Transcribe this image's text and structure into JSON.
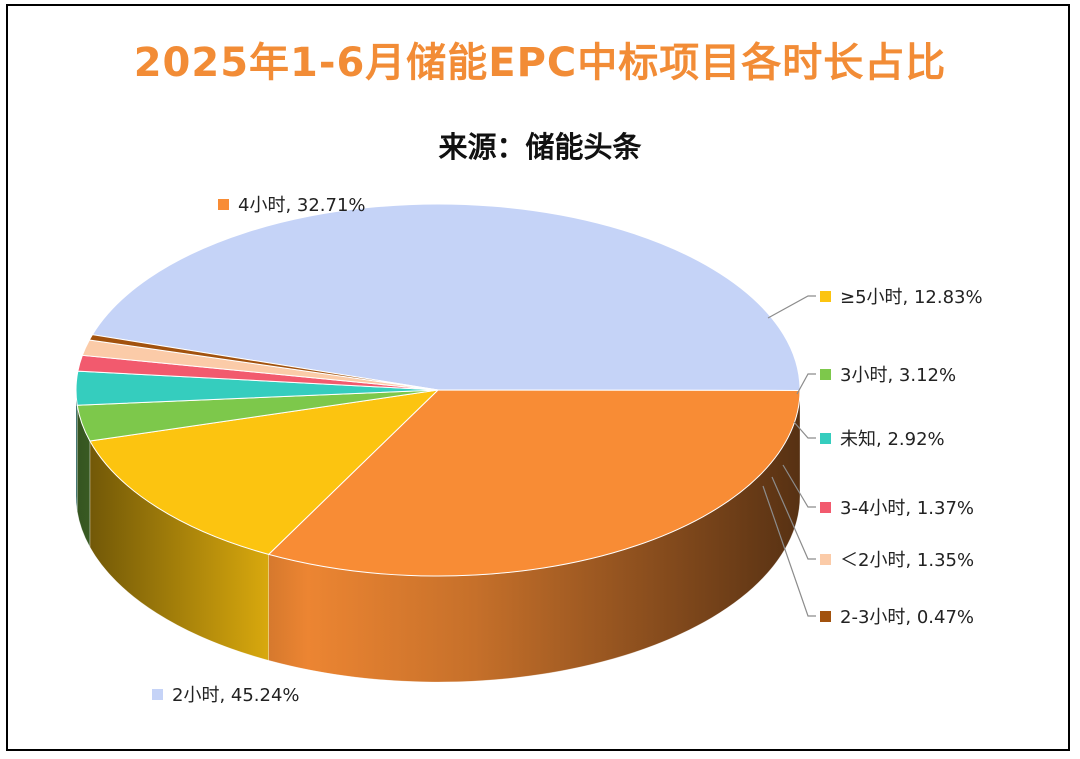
{
  "header": {
    "title": "2025年1-6月储能EPC中标项目各时长占比",
    "subtitle": "来源：储能头条"
  },
  "chart_data": {
    "type": "pie",
    "style": "3d",
    "legend": "data-labels",
    "slices": [
      {
        "label": "2小时",
        "value": 45.24,
        "display": "45.24%",
        "color": "#C5D3F7"
      },
      {
        "label": "4小时",
        "value": 32.71,
        "display": "32.71%",
        "color": "#F88C35"
      },
      {
        "label": "≥5小时",
        "value": 12.83,
        "display": "12.83%",
        "color": "#FCC410"
      },
      {
        "label": "3小时",
        "value": 3.12,
        "display": "3.12%",
        "color": "#7DC84B"
      },
      {
        "label": "未知",
        "value": 2.92,
        "display": "2.92%",
        "color": "#35CDBE"
      },
      {
        "label": "3-4小时",
        "value": 1.37,
        "display": "1.37%",
        "color": "#F25A6E"
      },
      {
        "label": "＜2小时",
        "value": 1.35,
        "display": "1.35%",
        "color": "#FBCBA8"
      },
      {
        "label": "2-3小时",
        "value": 0.47,
        "display": "0.47%",
        "color": "#A2520E"
      }
    ]
  }
}
